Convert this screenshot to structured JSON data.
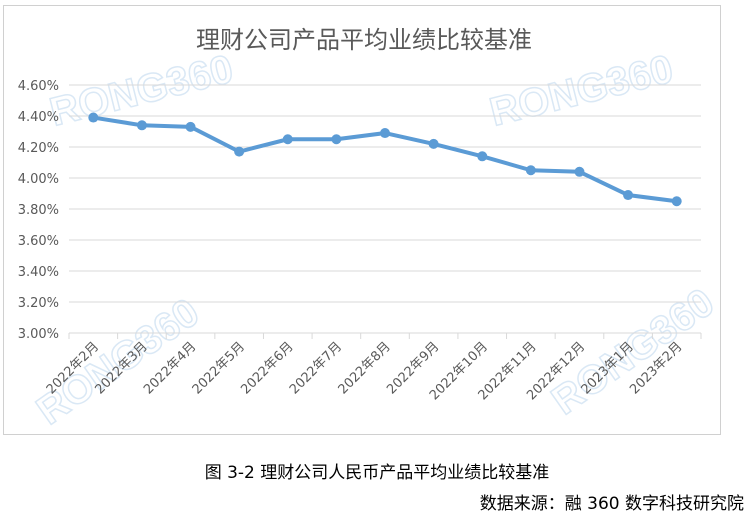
{
  "chart_data": {
    "type": "line",
    "title": "理财公司产品平均业绩比较基准",
    "categories": [
      "2022年2月",
      "2022年3月",
      "2022年4月",
      "2022年5月",
      "2022年6月",
      "2022年7月",
      "2022年8月",
      "2022年9月",
      "2022年10月",
      "2022年11月",
      "2022年12月",
      "2023年1月",
      "2023年2月"
    ],
    "values": [
      4.39,
      4.34,
      4.33,
      4.17,
      4.25,
      4.25,
      4.29,
      4.22,
      4.14,
      4.05,
      4.04,
      3.89,
      3.85
    ],
    "ylim": [
      3.0,
      4.6
    ],
    "yticks": [
      "3.00%",
      "3.20%",
      "3.40%",
      "3.60%",
      "3.80%",
      "4.00%",
      "4.20%",
      "4.40%",
      "4.60%"
    ],
    "ytick_values": [
      3.0,
      3.2,
      3.4,
      3.6,
      3.8,
      4.0,
      4.2,
      4.4,
      4.6
    ],
    "grid": true,
    "line_color": "#5b9bd5"
  },
  "watermark_text": "RONG360",
  "caption": "图 3-2 理财公司人民币产品平均业绩比较基准",
  "source": "数据来源：融 360 数字科技研究院"
}
